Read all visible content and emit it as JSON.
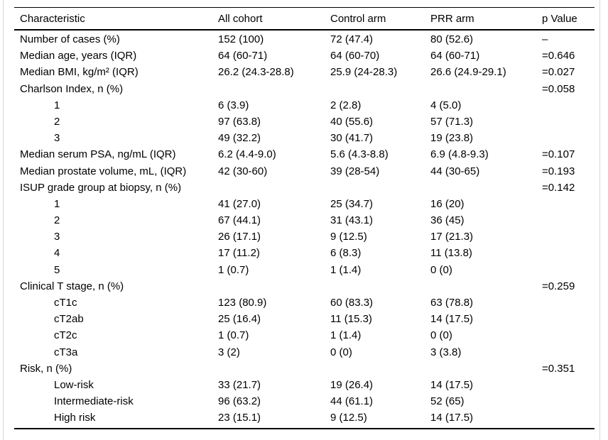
{
  "page": {
    "background_color": "#ffffff",
    "frame_border_color": "#d7d7d7",
    "rule_color": "#000000",
    "text_color": "#000000"
  },
  "table": {
    "columns": [
      "Characteristic",
      "All cohort",
      "Control arm",
      "PRR arm",
      "p Value"
    ],
    "rows": [
      {
        "label": "Number of cases (%)",
        "indent": false,
        "all": "152 (100)",
        "control": "72 (47.4)",
        "prr": "80 (52.6)",
        "p": "–"
      },
      {
        "label": "Median age, years (IQR)",
        "indent": false,
        "all": "64 (60-71)",
        "control": "64 (60-70)",
        "prr": "64 (60-71)",
        "p": "=0.646"
      },
      {
        "label": "Median BMI, kg/m² (IQR)",
        "indent": false,
        "all": "26.2 (24.3-28.8)",
        "control": "25.9 (24-28.3)",
        "prr": "26.6 (24.9-29.1)",
        "p": "=0.027"
      },
      {
        "label": "Charlson Index, n (%)",
        "indent": false,
        "all": "",
        "control": "",
        "prr": "",
        "p": "=0.058"
      },
      {
        "label": "1",
        "indent": true,
        "all": "6 (3.9)",
        "control": "2 (2.8)",
        "prr": "4 (5.0)",
        "p": ""
      },
      {
        "label": "2",
        "indent": true,
        "all": "97 (63.8)",
        "control": "40 (55.6)",
        "prr": "57 (71.3)",
        "p": ""
      },
      {
        "label": "3",
        "indent": true,
        "all": "49 (32.2)",
        "control": "30 (41.7)",
        "prr": "19 (23.8)",
        "p": ""
      },
      {
        "label": "Median serum PSA, ng/mL (IQR)",
        "indent": false,
        "all": "6.2 (4.4-9.0)",
        "control": "5.6 (4.3-8.8)",
        "prr": "6.9 (4.8-9.3)",
        "p": "=0.107"
      },
      {
        "label": "Median prostate volume, mL, (IQR)",
        "indent": false,
        "all": "42 (30-60)",
        "control": "39 (28-54)",
        "prr": "44 (30-65)",
        "p": "=0.193"
      },
      {
        "label": "ISUP grade group at biopsy, n (%)",
        "indent": false,
        "all": "",
        "control": "",
        "prr": "",
        "p": "=0.142"
      },
      {
        "label": "1",
        "indent": true,
        "all": "41 (27.0)",
        "control": "25 (34.7)",
        "prr": "16 (20)",
        "p": ""
      },
      {
        "label": "2",
        "indent": true,
        "all": "67 (44.1)",
        "control": "31 (43.1)",
        "prr": "36 (45)",
        "p": ""
      },
      {
        "label": "3",
        "indent": true,
        "all": "26 (17.1)",
        "control": "9 (12.5)",
        "prr": "17 (21.3)",
        "p": ""
      },
      {
        "label": "4",
        "indent": true,
        "all": "17 (11.2)",
        "control": "6 (8.3)",
        "prr": "11 (13.8)",
        "p": ""
      },
      {
        "label": "5",
        "indent": true,
        "all": "1 (0.7)",
        "control": "1 (1.4)",
        "prr": "0 (0)",
        "p": ""
      },
      {
        "label": "Clinical T stage, n (%)",
        "indent": false,
        "all": "",
        "control": "",
        "prr": "",
        "p": "=0.259"
      },
      {
        "label": "cT1c",
        "indent": true,
        "all": "123 (80.9)",
        "control": "60 (83.3)",
        "prr": "63 (78.8)",
        "p": ""
      },
      {
        "label": "cT2ab",
        "indent": true,
        "all": "25 (16.4)",
        "control": "11 (15.3)",
        "prr": "14 (17.5)",
        "p": ""
      },
      {
        "label": "cT2c",
        "indent": true,
        "all": "1 (0.7)",
        "control": "1 (1.4)",
        "prr": "0 (0)",
        "p": ""
      },
      {
        "label": "cT3a",
        "indent": true,
        "all": "3 (2)",
        "control": "0 (0)",
        "prr": "3 (3.8)",
        "p": ""
      },
      {
        "label": "Risk, n (%)",
        "indent": false,
        "all": "",
        "control": "",
        "prr": "",
        "p": "=0.351"
      },
      {
        "label": "Low-risk",
        "indent": true,
        "all": "33 (21.7)",
        "control": "19 (26.4)",
        "prr": "14 (17.5)",
        "p": ""
      },
      {
        "label": "Intermediate-risk",
        "indent": true,
        "all": "96 (63.2)",
        "control": "44 (61.1)",
        "prr": "52 (65)",
        "p": ""
      },
      {
        "label": "High risk",
        "indent": true,
        "all": "23 (15.1)",
        "control": "9 (12.5)",
        "prr": "14 (17.5)",
        "p": ""
      }
    ]
  }
}
